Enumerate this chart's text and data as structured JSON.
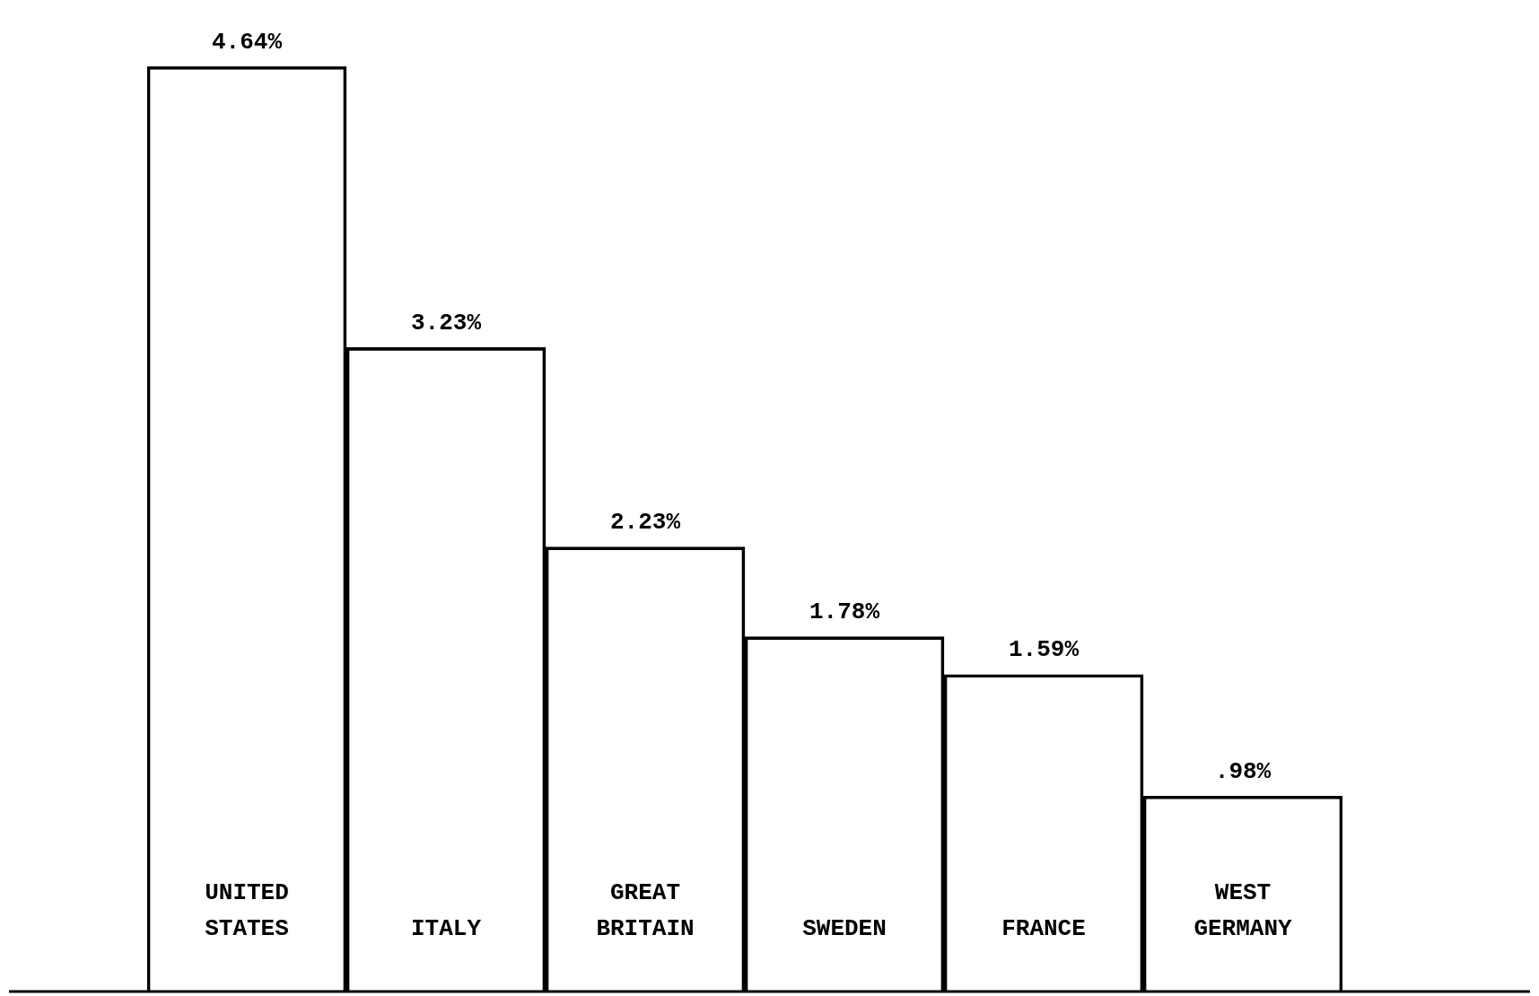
{
  "chart_data": {
    "type": "bar",
    "categories": [
      "UNITED STATES",
      "ITALY",
      "GREAT BRITAIN",
      "SWEDEN",
      "FRANCE",
      "WEST GERMANY"
    ],
    "values": [
      4.64,
      3.23,
      2.23,
      1.78,
      1.59,
      0.98
    ],
    "value_labels": [
      "4.64%",
      "3.23%",
      "2.23%",
      "1.78%",
      "1.59%",
      ".98%"
    ],
    "color": "#000000",
    "grid": false,
    "legend": false
  }
}
